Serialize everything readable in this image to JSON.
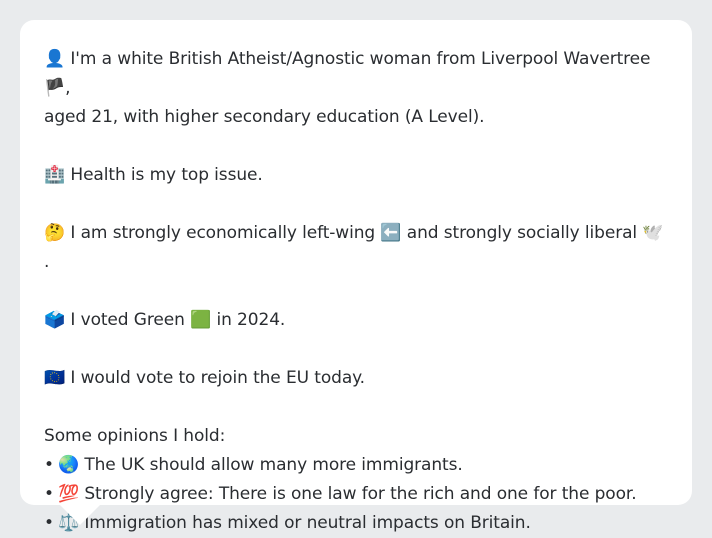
{
  "profile": {
    "intro": {
      "emoji": "👤",
      "text_before_flag": "I'm a white British Atheist/Agnostic woman from Liverpool Wavertree ",
      "flag_emoji": "🏴",
      "text_after_flag": ",",
      "line2": "aged 21, with higher secondary education (A Level)."
    },
    "issue": {
      "emoji": "🏥",
      "text": "Health is my top issue."
    },
    "ideology": {
      "emoji": "🤔",
      "text1": "I am strongly economically left-wing ",
      "emoji2": "⬅️",
      "text2": " and strongly socially liberal ",
      "emoji3": "🕊️",
      "text3": "."
    },
    "vote": {
      "emoji": "🗳️",
      "text1": "I voted Green ",
      "emoji2": "🟩",
      "text2": " in 2024."
    },
    "eu": {
      "emoji": "🇪🇺",
      "text": "I would vote to rejoin the EU today."
    },
    "opinions": {
      "heading": "Some opinions I hold:",
      "bullet": "•",
      "items": [
        {
          "emoji": "🌏",
          "text": "The UK should allow many more immigrants."
        },
        {
          "emoji": "💯",
          "text": "Strongly agree: There is one law for the rich and one for the poor."
        },
        {
          "emoji": "⚖️",
          "text": "Immigration has mixed or neutral impacts on Britain."
        }
      ]
    }
  }
}
